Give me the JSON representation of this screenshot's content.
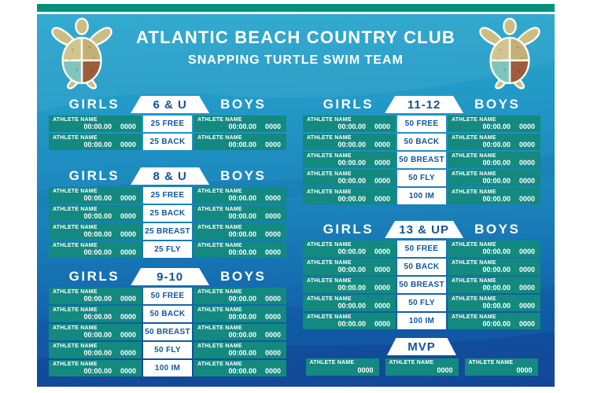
{
  "header": {
    "title": "ATLANTIC BEACH COUNTRY CLUB",
    "subtitle": "SNAPPING TURTLE SWIM TEAM"
  },
  "labels": {
    "girls": "GIRLS",
    "boys": "BOYS"
  },
  "colors": {
    "top_bar": "#03907e",
    "record_cell": "#13897f",
    "event_text": "#1156a0",
    "age_label_text": "#14529f",
    "background_top": "#2aa8ce",
    "background_bottom": "#1a53a4"
  },
  "sections": [
    {
      "age_group": "6 & U",
      "rows": [
        {
          "event": "25 FREE",
          "girls": {
            "name": "ATHLETE NAME",
            "time": "00:00.00",
            "year": "0000"
          },
          "boys": {
            "name": "ATHLETE NAME",
            "time": "00:00.00",
            "year": "0000"
          }
        },
        {
          "event": "25 BACK",
          "girls": {
            "name": "ATHLETE NAME",
            "time": "00:00.00",
            "year": "0000"
          },
          "boys": {
            "name": "ATHLETE NAME",
            "time": "00:00.00",
            "year": "0000"
          }
        }
      ]
    },
    {
      "age_group": "8 & U",
      "rows": [
        {
          "event": "25 FREE",
          "girls": {
            "name": "ATHLETE NAME",
            "time": "00:00.00",
            "year": "0000"
          },
          "boys": {
            "name": "ATHLETE NAME",
            "time": "00:00.00",
            "year": "0000"
          }
        },
        {
          "event": "25 BACK",
          "girls": {
            "name": "ATHLETE NAME",
            "time": "00:00.00",
            "year": "0000"
          },
          "boys": {
            "name": "ATHLETE NAME",
            "time": "00:00.00",
            "year": "0000"
          }
        },
        {
          "event": "25 BREAST",
          "girls": {
            "name": "ATHLETE NAME",
            "time": "00:00.00",
            "year": "0000"
          },
          "boys": {
            "name": "ATHLETE NAME",
            "time": "00:00.00",
            "year": "0000"
          }
        },
        {
          "event": "25 FLY",
          "girls": {
            "name": "ATHLETE NAME",
            "time": "00:00.00",
            "year": "0000"
          },
          "boys": {
            "name": "ATHLETE NAME",
            "time": "00:00.00",
            "year": "0000"
          }
        }
      ]
    },
    {
      "age_group": "9-10",
      "rows": [
        {
          "event": "50 FREE",
          "girls": {
            "name": "ATHLETE NAME",
            "time": "00:00.00",
            "year": "0000"
          },
          "boys": {
            "name": "ATHLETE NAME",
            "time": "00:00.00",
            "year": "0000"
          }
        },
        {
          "event": "50 BACK",
          "girls": {
            "name": "ATHLETE NAME",
            "time": "00:00.00",
            "year": "0000"
          },
          "boys": {
            "name": "ATHLETE NAME",
            "time": "00:00.00",
            "year": "0000"
          }
        },
        {
          "event": "50 BREAST",
          "girls": {
            "name": "ATHLETE NAME",
            "time": "00:00.00",
            "year": "0000"
          },
          "boys": {
            "name": "ATHLETE NAME",
            "time": "00:00.00",
            "year": "0000"
          }
        },
        {
          "event": "50 FLY",
          "girls": {
            "name": "ATHLETE NAME",
            "time": "00:00.00",
            "year": "0000"
          },
          "boys": {
            "name": "ATHLETE NAME",
            "time": "00:00.00",
            "year": "0000"
          }
        },
        {
          "event": "100 IM",
          "girls": {
            "name": "ATHLETE NAME",
            "time": "00:00.00",
            "year": "0000"
          },
          "boys": {
            "name": "ATHLETE NAME",
            "time": "00:00.00",
            "year": "0000"
          }
        }
      ]
    },
    {
      "age_group": "11-12",
      "rows": [
        {
          "event": "50 FREE",
          "girls": {
            "name": "ATHLETE NAME",
            "time": "00:00.00",
            "year": "0000"
          },
          "boys": {
            "name": "ATHLETE NAME",
            "time": "00:00.00",
            "year": "0000"
          }
        },
        {
          "event": "50 BACK",
          "girls": {
            "name": "ATHLETE NAME",
            "time": "00:00.00",
            "year": "0000"
          },
          "boys": {
            "name": "ATHLETE NAME",
            "time": "00:00.00",
            "year": "0000"
          }
        },
        {
          "event": "50 BREAST",
          "girls": {
            "name": "ATHLETE NAME",
            "time": "00:00.00",
            "year": "0000"
          },
          "boys": {
            "name": "ATHLETE NAME",
            "time": "00:00.00",
            "year": "0000"
          }
        },
        {
          "event": "50 FLY",
          "girls": {
            "name": "ATHLETE NAME",
            "time": "00:00.00",
            "year": "0000"
          },
          "boys": {
            "name": "ATHLETE NAME",
            "time": "00:00.00",
            "year": "0000"
          }
        },
        {
          "event": "100 IM",
          "girls": {
            "name": "ATHLETE NAME",
            "time": "00:00.00",
            "year": "0000"
          },
          "boys": {
            "name": "ATHLETE NAME",
            "time": "00:00.00",
            "year": "0000"
          }
        }
      ]
    },
    {
      "age_group": "13 & UP",
      "rows": [
        {
          "event": "50 FREE",
          "girls": {
            "name": "ATHLETE NAME",
            "time": "00:00.00",
            "year": "0000"
          },
          "boys": {
            "name": "ATHLETE NAME",
            "time": "00:00.00",
            "year": "0000"
          }
        },
        {
          "event": "50 BACK",
          "girls": {
            "name": "ATHLETE NAME",
            "time": "00:00.00",
            "year": "0000"
          },
          "boys": {
            "name": "ATHLETE NAME",
            "time": "00:00.00",
            "year": "0000"
          }
        },
        {
          "event": "50 BREAST",
          "girls": {
            "name": "ATHLETE NAME",
            "time": "00:00.00",
            "year": "0000"
          },
          "boys": {
            "name": "ATHLETE NAME",
            "time": "00:00.00",
            "year": "0000"
          }
        },
        {
          "event": "50 FLY",
          "girls": {
            "name": "ATHLETE NAME",
            "time": "00:00.00",
            "year": "0000"
          },
          "boys": {
            "name": "ATHLETE NAME",
            "time": "00:00.00",
            "year": "0000"
          }
        },
        {
          "event": "100 IM",
          "girls": {
            "name": "ATHLETE NAME",
            "time": "00:00.00",
            "year": "0000"
          },
          "boys": {
            "name": "ATHLETE NAME",
            "time": "00:00.00",
            "year": "0000"
          }
        }
      ]
    }
  ],
  "mvp": {
    "label": "MVP",
    "entries": [
      {
        "name": "ATHLETE NAME",
        "year": "0000"
      },
      {
        "name": "ATHLETE NAME",
        "year": "0000"
      },
      {
        "name": "ATHLETE NAME",
        "year": "0000"
      }
    ]
  }
}
